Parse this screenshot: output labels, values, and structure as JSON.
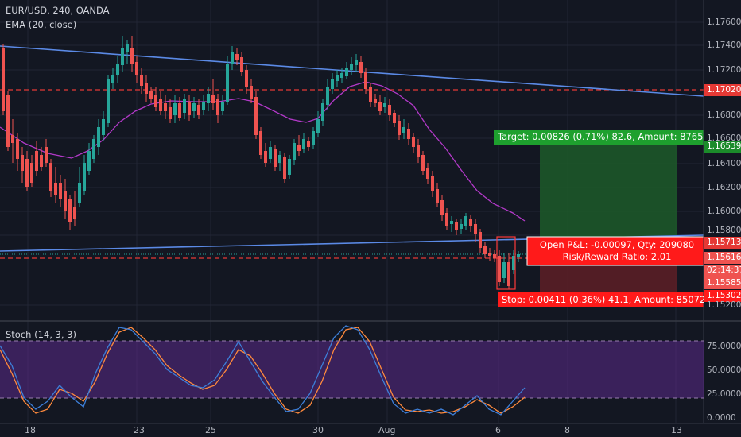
{
  "header": {
    "symbol_line": "EUR/USD, 240, OANDA",
    "indicator_line": "EMA (20, close)"
  },
  "stoch": {
    "label": "Stoch (14, 3, 3)"
  },
  "price_axis": {
    "ticks": [
      "1.17600",
      "1.17400",
      "1.17200",
      "1.16800",
      "1.16600",
      "1.16400",
      "1.16200",
      "1.16000",
      "1.15800",
      "1.15200"
    ],
    "tags": {
      "resistance": "1.17020",
      "target": "1.16539",
      "trendline": "1.15713",
      "current": "1.15616",
      "countdown": "02:14:37",
      "low": "1.15585",
      "stop": "1.15302"
    }
  },
  "stoch_axis": {
    "ticks": [
      "75.0000",
      "50.0000",
      "25.0000",
      "0.0000"
    ]
  },
  "time_axis": {
    "ticks": [
      "18",
      "23",
      "25",
      "30",
      "Aug",
      "6",
      "8",
      "13"
    ]
  },
  "position": {
    "target_text": "Target: 0.00826 (0.71%) 82.6, Amount: 8765",
    "pnl_line": "Open P&L: -0.00097, Qty: 209080",
    "rr_line": "Risk/Reward Ratio: 2.01",
    "stop_text": "Stop: 0.00411 (0.36%) 41.1, Amount: 85072"
  },
  "colors": {
    "background": "#131722",
    "bull": "#26a69a",
    "bear": "#ef5350",
    "trendline": "#5b8ae6",
    "ema": "#b339c9",
    "dashed": "#e53935",
    "target_green": "#1b8b2a",
    "stop_red": "#ff1a1a",
    "stoch_k": "#3d7fd9",
    "stoch_d": "#ff8a3d",
    "stoch_band": "#5b2a8a"
  }
}
